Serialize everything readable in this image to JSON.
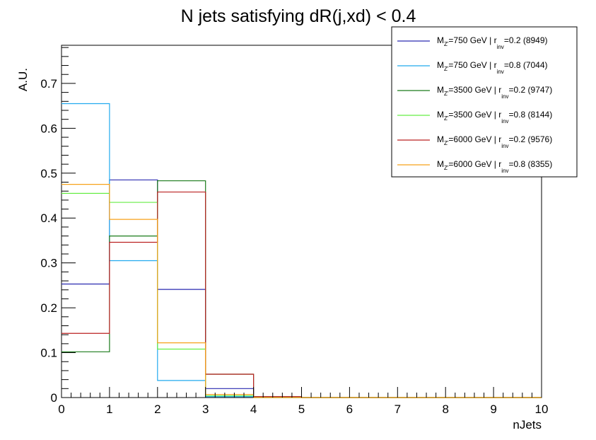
{
  "chart_data": {
    "type": "histogram",
    "title": "N jets satisfying dR(j,xd) < 0.4",
    "xlabel": "nJets",
    "ylabel": "A.U.",
    "xlim": [
      0,
      10
    ],
    "ylim": [
      0,
      0.785
    ],
    "x_ticks": [
      "0",
      "1",
      "2",
      "3",
      "4",
      "5",
      "6",
      "7",
      "8",
      "9",
      "10"
    ],
    "y_ticks": [
      {
        "value": 0,
        "label": "0"
      },
      {
        "value": 0.1,
        "label": "0.1"
      },
      {
        "value": 0.2,
        "label": "0.2"
      },
      {
        "value": 0.3,
        "label": "0.3"
      },
      {
        "value": 0.4,
        "label": "0.4"
      },
      {
        "value": 0.5,
        "label": "0.5"
      },
      {
        "value": 0.6,
        "label": "0.6"
      },
      {
        "value": 0.7,
        "label": "0.7"
      }
    ],
    "bin_edges": [
      0,
      1,
      2,
      3,
      4,
      5,
      6,
      7,
      8,
      9,
      10
    ],
    "legend_position": "top-right",
    "series": [
      {
        "color": "#2a2ab0",
        "values": [
          0.253,
          0.485,
          0.241,
          0.02,
          0.001,
          0,
          0,
          0,
          0,
          0
        ],
        "legend": {
          "pre": "M",
          "sub1": "Z'",
          "mid": "=750 GeV | r",
          "sub2": "inv",
          "post": "=0.2 (8949)"
        }
      },
      {
        "color": "#22aaee",
        "values": [
          0.655,
          0.305,
          0.038,
          0.002,
          0,
          0,
          0,
          0,
          0,
          0
        ],
        "legend": {
          "pre": "M",
          "sub1": "Z'",
          "mid": "=750 GeV | r",
          "sub2": "inv",
          "post": "=0.8 (7044)"
        }
      },
      {
        "color": "#1a7a1a",
        "values": [
          0.102,
          0.36,
          0.483,
          0.052,
          0.002,
          0,
          0,
          0,
          0,
          0
        ],
        "legend": {
          "pre": "M",
          "sub1": "Z'",
          "mid": "=3500 GeV | r",
          "sub2": "inv",
          "post": "=0.2 (9747)"
        }
      },
      {
        "color": "#66ee44",
        "values": [
          0.455,
          0.435,
          0.108,
          0.004,
          0,
          0,
          0,
          0,
          0,
          0
        ],
        "legend": {
          "pre": "M",
          "sub1": "Z'",
          "mid": "=3500 GeV | r",
          "sub2": "inv",
          "post": "=0.8 (8144)"
        }
      },
      {
        "color": "#bb2222",
        "values": [
          0.143,
          0.346,
          0.458,
          0.052,
          0.002,
          0,
          0,
          0,
          0,
          0
        ],
        "legend": {
          "pre": "M",
          "sub1": "Z'",
          "mid": "=6000 GeV | r",
          "sub2": "inv",
          "post": "=0.2 (9576)"
        }
      },
      {
        "color": "#f7a21b",
        "values": [
          0.475,
          0.397,
          0.122,
          0.007,
          0,
          0,
          0,
          0,
          0,
          0
        ],
        "legend": {
          "pre": "M",
          "sub1": "Z'",
          "mid": "=6000 GeV | r",
          "sub2": "inv",
          "post": "=0.8 (8355)"
        }
      }
    ]
  }
}
